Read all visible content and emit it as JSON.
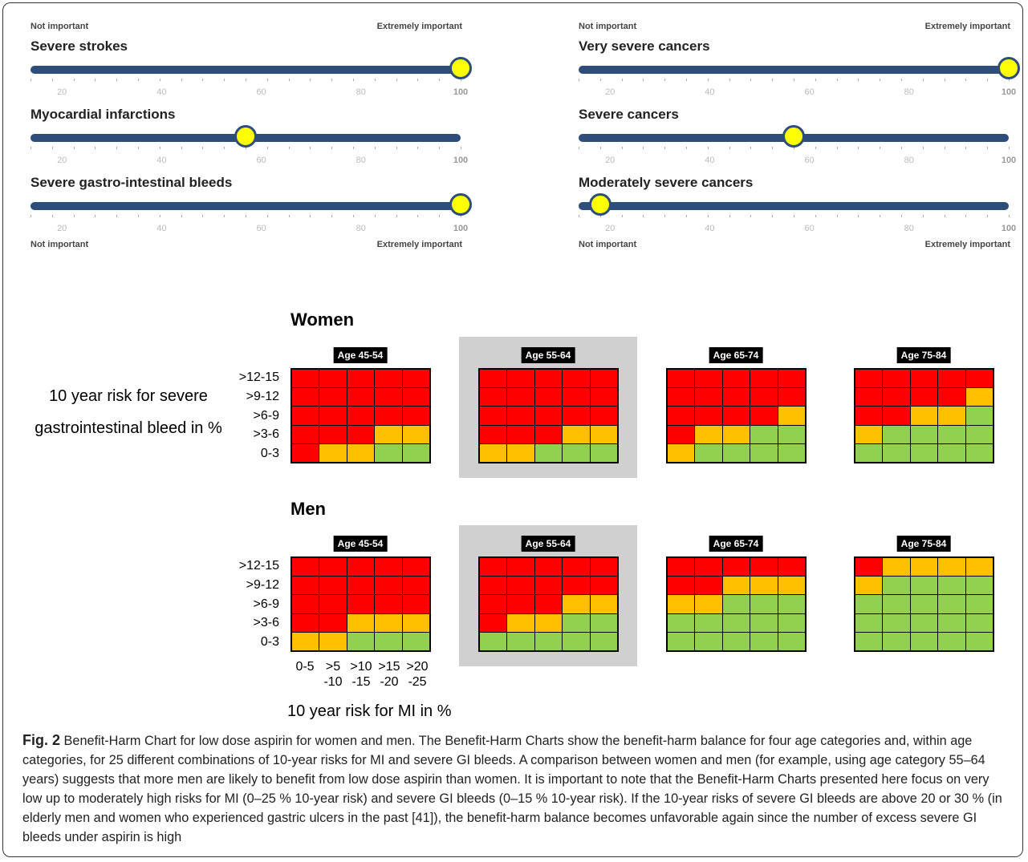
{
  "scale": {
    "low_label": "Not important",
    "high_label": "Extremely important",
    "ticks": [
      "20",
      "40",
      "60",
      "80",
      "100"
    ]
  },
  "sliders": [
    {
      "label": "Severe strokes",
      "value": 100
    },
    {
      "label": "Myocardial infarctions",
      "value": 50
    },
    {
      "label": "Severe gastro-intestinal bleeds",
      "value": 100
    },
    {
      "label": "Very severe cancers",
      "value": 100
    },
    {
      "label": "Severe cancers",
      "value": 50
    },
    {
      "label": "Moderately severe cancers",
      "value": 5
    }
  ],
  "chart_data": {
    "type": "heatmap",
    "ylabel": "10 year risk for severe gastrointestinal bleed in %",
    "xlabel": "10 year risk for MI in %",
    "y_categories": [
      ">12-15",
      ">9-12",
      ">6-9",
      ">3-6",
      "0-3"
    ],
    "x_categories": [
      [
        "0-5",
        ""
      ],
      [
        ">5",
        "-10"
      ],
      [
        ">10",
        "-15"
      ],
      [
        ">15",
        "-20"
      ],
      [
        ">20",
        "-25"
      ]
    ],
    "color_legend": {
      "r": "#ff0000",
      "o": "#ffc000",
      "g": "#92d050"
    },
    "groups": [
      {
        "sex": "Women",
        "panels": [
          {
            "age": "Age 45-54",
            "highlight": false,
            "cells": [
              "rrrrr",
              "rrrrr",
              "rrrrr",
              "rrroo",
              "roogg"
            ]
          },
          {
            "age": "Age 55-64",
            "highlight": true,
            "cells": [
              "rrrrr",
              "rrrrr",
              "rrrrr",
              "rrroo",
              "oogg g"
            ]
          },
          {
            "age": "Age 65-74",
            "highlight": false,
            "cells": [
              "rrrrr",
              "rrrrr",
              "rrrro",
              "roogg",
              "ogggg"
            ]
          },
          {
            "age": "Age 75-84",
            "highlight": false,
            "cells": [
              "rrrrr",
              "rrrro",
              "rroog",
              "ogggg",
              "ggggg"
            ]
          }
        ]
      },
      {
        "sex": "Men",
        "panels": [
          {
            "age": "Age 45-54",
            "highlight": false,
            "cells": [
              "rrrrr",
              "rrrrr",
              "rrrrr",
              "rrooo",
              "oogg g"
            ]
          },
          {
            "age": "Age 55-64",
            "highlight": true,
            "cells": [
              "rrrrr",
              "rrrrr",
              "rrroo",
              "roogg",
              "ggggg"
            ]
          },
          {
            "age": "Age 65-74",
            "highlight": false,
            "cells": [
              "rrrrr",
              "rrooo",
              "ooggg",
              "ggggg",
              "ggggg"
            ]
          },
          {
            "age": "Age 75-84",
            "highlight": false,
            "cells": [
              "roooo",
              "ogggg",
              "ggggg",
              "ggggg",
              "ggggg"
            ]
          }
        ]
      }
    ]
  },
  "caption": {
    "fig": "Fig. 2",
    "text": "Benefit-Harm Chart for low dose aspirin for women and men. The Benefit-Harm Charts show the benefit-harm balance for four age categories and, within age categories, for 25 different combinations of 10-year risks for MI and severe GI bleeds. A comparison between women and men (for example, using age category 55–64 years) suggests that more men are likely to benefit from low dose aspirin than women. It is important to note that the Benefit-Harm Charts presented here focus on very low up to moderately high risks for MI (0–25 % 10-year risk) and severe GI bleeds (0–15 % 10-year risk). If the 10-year risks of severe GI bleeds are above 20 or 30 % (in elderly men and women who experienced gastric ulcers in the past [41]), the benefit-harm balance becomes unfavorable again since the number of excess severe GI bleeds under aspirin is high"
  }
}
